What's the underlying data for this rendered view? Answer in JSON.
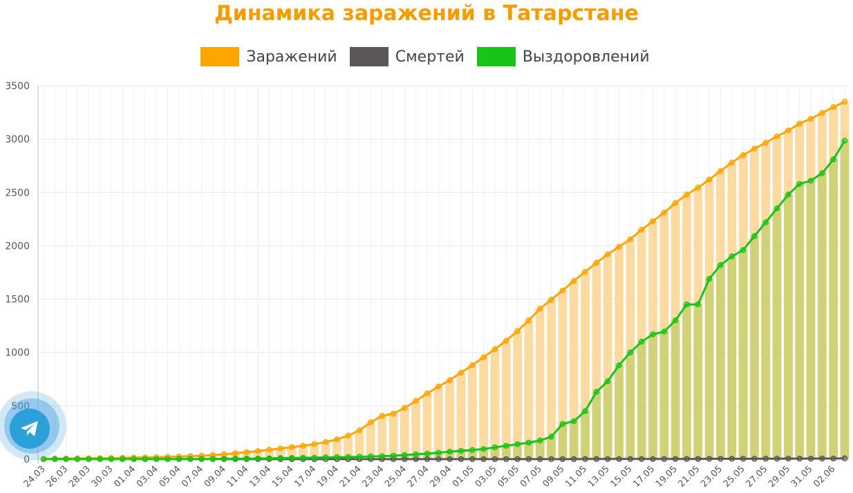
{
  "colors": {
    "title": "#f59d00",
    "infected": "#ffa500",
    "infected_fill": "#fddba0",
    "deaths": "#5c5757",
    "recovered": "#17c417",
    "recovered_fill": "#d1d278",
    "grid": "#e6e6e6"
  },
  "chart_data": {
    "type": "bar",
    "title": "Динамика заражений в Татарстане",
    "legend_position": "top-center",
    "ylim": [
      0,
      3500
    ],
    "yticks": [
      0,
      500,
      1000,
      1500,
      2000,
      2500,
      3000,
      3500
    ],
    "grid": true,
    "categories": [
      "24.03",
      "25.03",
      "26.03",
      "27.03",
      "28.03",
      "29.03",
      "30.03",
      "31.03",
      "01.04",
      "02.04",
      "03.04",
      "04.04",
      "05.04",
      "06.04",
      "07.04",
      "08.04",
      "09.04",
      "10.04",
      "11.04",
      "12.04",
      "13.04",
      "14.04",
      "15.04",
      "16.04",
      "17.04",
      "18.04",
      "19.04",
      "20.04",
      "21.04",
      "22.04",
      "23.04",
      "24.04",
      "25.04",
      "26.04",
      "27.04",
      "28.04",
      "29.04",
      "30.04",
      "01.05",
      "02.05",
      "03.05",
      "04.05",
      "05.05",
      "06.05",
      "07.05",
      "08.05",
      "09.05",
      "10.05",
      "11.05",
      "12.05",
      "13.05",
      "14.05",
      "15.05",
      "16.05",
      "17.05",
      "18.05",
      "19.05",
      "20.05",
      "21.05",
      "22.05",
      "23.05",
      "24.05",
      "25.05",
      "26.05",
      "27.05",
      "28.05",
      "29.05",
      "30.05",
      "31.05",
      "01.06",
      "02.06",
      "03.06"
    ],
    "xtick_labels": [
      "24.03",
      "26.03",
      "28.03",
      "30.03",
      "01.04",
      "03.04",
      "05.04",
      "07.04",
      "09.04",
      "11.04",
      "13.04",
      "15.04",
      "17.04",
      "19.04",
      "21.04",
      "23.04",
      "25.04",
      "27.04",
      "29.04",
      "01.05",
      "03.05",
      "05.05",
      "07.05",
      "09.05",
      "11.05",
      "13.05",
      "15.05",
      "17.05",
      "19.05",
      "21.05",
      "23.05",
      "25.05",
      "27.05",
      "29.05",
      "31.05",
      "02.06"
    ],
    "series": [
      {
        "name": "Заражений",
        "type": "bar+line",
        "values": [
          2,
          5,
          6,
          7,
          8,
          9,
          10,
          12,
          14,
          16,
          18,
          21,
          24,
          28,
          32,
          38,
          45,
          55,
          65,
          75,
          88,
          100,
          112,
          125,
          140,
          160,
          185,
          220,
          270,
          345,
          405,
          425,
          480,
          545,
          615,
          680,
          740,
          810,
          880,
          955,
          1030,
          1110,
          1200,
          1300,
          1410,
          1495,
          1580,
          1670,
          1755,
          1840,
          1920,
          1990,
          2060,
          2150,
          2230,
          2310,
          2400,
          2480,
          2545,
          2620,
          2700,
          2780,
          2850,
          2910,
          2965,
          3025,
          3080,
          3145,
          3190,
          3245,
          3300,
          3350
        ]
      },
      {
        "name": "Смертей",
        "type": "line",
        "values": [
          0,
          0,
          0,
          0,
          0,
          0,
          0,
          0,
          0,
          0,
          0,
          0,
          0,
          0,
          0,
          0,
          0,
          0,
          0,
          0,
          0,
          0,
          0,
          0,
          0,
          0,
          0,
          0,
          0,
          0,
          0,
          0,
          0,
          0,
          0,
          0,
          0,
          0,
          0,
          0,
          0,
          0,
          0,
          0,
          0,
          0,
          0,
          0,
          1,
          1,
          1,
          1,
          1,
          1,
          1,
          1,
          2,
          2,
          2,
          3,
          3,
          3,
          3,
          3,
          4,
          4,
          5,
          5,
          5,
          6,
          6,
          7
        ]
      },
      {
        "name": "Выздоровлений",
        "type": "bar+line",
        "values": [
          0,
          0,
          0,
          0,
          0,
          0,
          0,
          0,
          0,
          0,
          0,
          0,
          1,
          1,
          2,
          2,
          3,
          4,
          5,
          6,
          8,
          10,
          11,
          12,
          14,
          16,
          18,
          20,
          22,
          25,
          28,
          32,
          38,
          45,
          52,
          60,
          70,
          78,
          85,
          95,
          110,
          125,
          140,
          155,
          175,
          210,
          330,
          355,
          450,
          630,
          730,
          880,
          1000,
          1100,
          1170,
          1195,
          1300,
          1450,
          1450,
          1690,
          1820,
          1900,
          1960,
          2090,
          2220,
          2350,
          2480,
          2580,
          2610,
          2680,
          2810,
          2985
        ]
      }
    ]
  }
}
